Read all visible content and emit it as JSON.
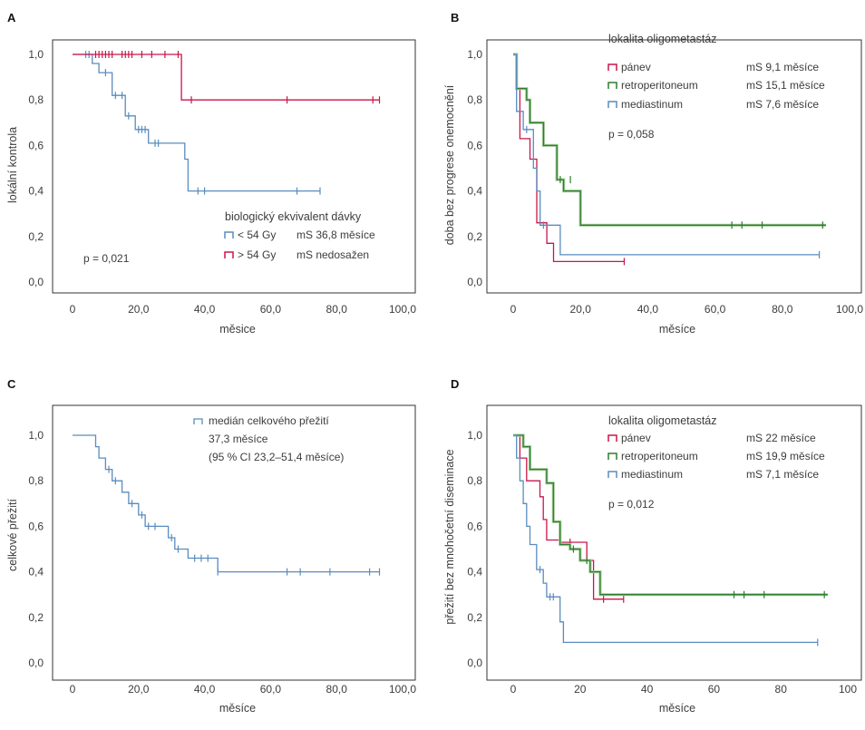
{
  "colors": {
    "red": "#c8164a",
    "blue": "#5a8cbe",
    "green": "#2e7d2e",
    "green_band": "#a9cf9f",
    "axis": "#333333"
  },
  "chart_data": [
    {
      "type": "line",
      "panel_label": "A",
      "xlabel": "měsice",
      "ylabel": "lokální kontrola",
      "xlim": [
        -7,
        100
      ],
      "ylim": [
        0,
        1.0
      ],
      "xticks": [
        "0",
        "20,0",
        "40,0",
        "60,0",
        "80,0",
        "100,0"
      ],
      "xtick_values": [
        0,
        20,
        40,
        60,
        80,
        100
      ],
      "yticks": [
        "0,0",
        "0,2",
        "0,4",
        "0,6",
        "0,8",
        "1,0"
      ],
      "ytick_values": [
        0,
        0.2,
        0.4,
        0.6,
        0.8,
        1.0
      ],
      "legend_title": "biologický ekvivalent dávky",
      "pvalue": "p = 0,021",
      "series": [
        {
          "name": "< 54 Gy",
          "median": "mS 36,8 měsíce",
          "color": "blue",
          "steps": [
            [
              0,
              1.0
            ],
            [
              6,
              1.0
            ],
            [
              6,
              0.96
            ],
            [
              8,
              0.96
            ],
            [
              8,
              0.92
            ],
            [
              12,
              0.92
            ],
            [
              12,
              0.82
            ],
            [
              16,
              0.82
            ],
            [
              16,
              0.73
            ],
            [
              19,
              0.73
            ],
            [
              19,
              0.67
            ],
            [
              23,
              0.67
            ],
            [
              23,
              0.61
            ],
            [
              34,
              0.61
            ],
            [
              34,
              0.54
            ],
            [
              35,
              0.54
            ],
            [
              35,
              0.4
            ],
            [
              75,
              0.4
            ]
          ],
          "censor": [
            [
              4,
              1.0
            ],
            [
              5,
              1.0
            ],
            [
              10,
              0.92
            ],
            [
              13,
              0.82
            ],
            [
              15,
              0.82
            ],
            [
              17,
              0.73
            ],
            [
              20,
              0.67
            ],
            [
              21,
              0.67
            ],
            [
              22,
              0.67
            ],
            [
              25,
              0.61
            ],
            [
              26,
              0.61
            ],
            [
              38,
              0.4
            ],
            [
              40,
              0.4
            ],
            [
              68,
              0.4
            ],
            [
              75,
              0.4
            ]
          ]
        },
        {
          "name": "> 54 Gy",
          "median": "mS nedosažen",
          "color": "red",
          "steps": [
            [
              0,
              1.0
            ],
            [
              33,
              1.0
            ],
            [
              33,
              0.8
            ],
            [
              93,
              0.8
            ]
          ],
          "censor": [
            [
              7,
              1.0
            ],
            [
              8,
              1.0
            ],
            [
              9,
              1.0
            ],
            [
              10,
              1.0
            ],
            [
              11,
              1.0
            ],
            [
              12,
              1.0
            ],
            [
              15,
              1.0
            ],
            [
              16,
              1.0
            ],
            [
              17,
              1.0
            ],
            [
              18,
              1.0
            ],
            [
              21,
              1.0
            ],
            [
              24,
              1.0
            ],
            [
              28,
              1.0
            ],
            [
              32,
              1.0
            ],
            [
              36,
              0.8
            ],
            [
              65,
              0.8
            ],
            [
              91,
              0.8
            ],
            [
              93,
              0.8
            ]
          ]
        }
      ]
    },
    {
      "type": "line",
      "panel_label": "B",
      "xlabel": "měsíce",
      "ylabel": "doba bez progrese onemocnění",
      "xlim": [
        -3,
        100
      ],
      "ylim": [
        0,
        1.0
      ],
      "xticks": [
        "0",
        "20,0",
        "40,0",
        "60,0",
        "80,0",
        "100,0"
      ],
      "xtick_values": [
        0,
        20,
        40,
        60,
        80,
        100
      ],
      "yticks": [
        "0,0",
        "0,2",
        "0,4",
        "0,6",
        "0,8",
        "1,0"
      ],
      "ytick_values": [
        0,
        0.2,
        0.4,
        0.6,
        0.8,
        1.0
      ],
      "legend_title": "lokalita oligometastáz",
      "pvalue": "p = 0,058",
      "series": [
        {
          "name": "pánev",
          "median": "mS 9,1 měsíce",
          "color": "red",
          "steps": [
            [
              0,
              1.0
            ],
            [
              1,
              1.0
            ],
            [
              1,
              0.85
            ],
            [
              2,
              0.85
            ],
            [
              2,
              0.63
            ],
            [
              5,
              0.63
            ],
            [
              5,
              0.54
            ],
            [
              7,
              0.54
            ],
            [
              7,
              0.26
            ],
            [
              10,
              0.26
            ],
            [
              10,
              0.17
            ],
            [
              12,
              0.17
            ],
            [
              12,
              0.09
            ],
            [
              33,
              0.09
            ]
          ],
          "censor": [
            [
              33,
              0.09
            ]
          ]
        },
        {
          "name": "retroperitoneum",
          "median": "mS 15,1 měsíce",
          "color": "green",
          "steps": [
            [
              0,
              1.0
            ],
            [
              1,
              1.0
            ],
            [
              1,
              0.85
            ],
            [
              4,
              0.85
            ],
            [
              4,
              0.8
            ],
            [
              5,
              0.8
            ],
            [
              5,
              0.7
            ],
            [
              9,
              0.7
            ],
            [
              9,
              0.6
            ],
            [
              13,
              0.6
            ],
            [
              13,
              0.45
            ],
            [
              15,
              0.45
            ],
            [
              15,
              0.4
            ],
            [
              20,
              0.4
            ],
            [
              20,
              0.25
            ],
            [
              93,
              0.25
            ]
          ],
          "censor": [
            [
              14,
              0.45
            ],
            [
              17,
              0.45
            ],
            [
              65,
              0.25
            ],
            [
              68,
              0.25
            ],
            [
              74,
              0.25
            ],
            [
              92,
              0.25
            ]
          ]
        },
        {
          "name": "mediastinum",
          "median": "mS 7,6 měsíce",
          "color": "blue",
          "steps": [
            [
              0,
              1.0
            ],
            [
              1,
              1.0
            ],
            [
              1,
              0.75
            ],
            [
              3,
              0.75
            ],
            [
              3,
              0.67
            ],
            [
              6,
              0.67
            ],
            [
              6,
              0.5
            ],
            [
              7,
              0.5
            ],
            [
              7,
              0.4
            ],
            [
              8,
              0.4
            ],
            [
              8,
              0.25
            ],
            [
              14,
              0.25
            ],
            [
              14,
              0.12
            ],
            [
              91,
              0.12
            ]
          ],
          "censor": [
            [
              4,
              0.67
            ],
            [
              9,
              0.25
            ],
            [
              91,
              0.12
            ]
          ]
        }
      ]
    },
    {
      "type": "line",
      "panel_label": "C",
      "xlabel": "měsíce",
      "ylabel": "celkové přežití",
      "xlim": [
        -7,
        100
      ],
      "ylim": [
        0,
        1.0
      ],
      "xticks": [
        "0",
        "20,0",
        "40,0",
        "60,0",
        "80,0",
        "100,0"
      ],
      "xtick_values": [
        0,
        20,
        40,
        60,
        80,
        100
      ],
      "yticks": [
        "0,0",
        "0,2",
        "0,4",
        "0,6",
        "0,8",
        "1,0"
      ],
      "ytick_values": [
        0,
        0.2,
        0.4,
        0.6,
        0.8,
        1.0
      ],
      "legend_lines": [
        "medián celkového přežití",
        "37,3 měsíce",
        "(95 % CI 23,2–51,4 měsíce)"
      ],
      "series": [
        {
          "name": "medián celkového přežití",
          "color": "blue",
          "steps": [
            [
              0,
              1.0
            ],
            [
              7,
              1.0
            ],
            [
              7,
              0.95
            ],
            [
              8,
              0.95
            ],
            [
              8,
              0.9
            ],
            [
              10,
              0.9
            ],
            [
              10,
              0.85
            ],
            [
              12,
              0.85
            ],
            [
              12,
              0.8
            ],
            [
              15,
              0.8
            ],
            [
              15,
              0.75
            ],
            [
              17,
              0.75
            ],
            [
              17,
              0.7
            ],
            [
              20,
              0.7
            ],
            [
              20,
              0.65
            ],
            [
              22,
              0.65
            ],
            [
              22,
              0.6
            ],
            [
              29,
              0.6
            ],
            [
              29,
              0.55
            ],
            [
              31,
              0.55
            ],
            [
              31,
              0.5
            ],
            [
              35,
              0.5
            ],
            [
              35,
              0.46
            ],
            [
              44,
              0.46
            ],
            [
              44,
              0.4
            ],
            [
              93,
              0.4
            ]
          ],
          "censor": [
            [
              11,
              0.85
            ],
            [
              13,
              0.8
            ],
            [
              18,
              0.7
            ],
            [
              21,
              0.65
            ],
            [
              23,
              0.6
            ],
            [
              25,
              0.6
            ],
            [
              30,
              0.55
            ],
            [
              32,
              0.5
            ],
            [
              37,
              0.46
            ],
            [
              39,
              0.46
            ],
            [
              41,
              0.46
            ],
            [
              44,
              0.4
            ],
            [
              65,
              0.4
            ],
            [
              69,
              0.4
            ],
            [
              78,
              0.4
            ],
            [
              90,
              0.4
            ],
            [
              93,
              0.4
            ]
          ]
        }
      ]
    },
    {
      "type": "line",
      "panel_label": "D",
      "xlabel": "měsíce",
      "ylabel": "přežití bez mnohočetní diseminace",
      "xlim": [
        -5,
        100
      ],
      "ylim": [
        0,
        1.0
      ],
      "xticks": [
        "0",
        "20",
        "40",
        "60",
        "80",
        "100"
      ],
      "xtick_values": [
        0,
        20,
        40,
        60,
        80,
        100
      ],
      "yticks": [
        "0,0",
        "0,2",
        "0,4",
        "0,6",
        "0,8",
        "1,0"
      ],
      "ytick_values": [
        0,
        0.2,
        0.4,
        0.6,
        0.8,
        1.0
      ],
      "legend_title": "lokalita oligometastáz",
      "pvalue": "p = 0,012",
      "series": [
        {
          "name": "pánev",
          "median": "mS 22 měsíce",
          "color": "red",
          "steps": [
            [
              0,
              1.0
            ],
            [
              2,
              1.0
            ],
            [
              2,
              0.9
            ],
            [
              4,
              0.9
            ],
            [
              4,
              0.8
            ],
            [
              8,
              0.8
            ],
            [
              8,
              0.73
            ],
            [
              9,
              0.73
            ],
            [
              9,
              0.63
            ],
            [
              10,
              0.63
            ],
            [
              10,
              0.54
            ],
            [
              14,
              0.54
            ],
            [
              14,
              0.53
            ],
            [
              22,
              0.53
            ],
            [
              22,
              0.45
            ],
            [
              24,
              0.45
            ],
            [
              24,
              0.28
            ],
            [
              33,
              0.28
            ]
          ],
          "censor": [
            [
              17,
              0.53
            ],
            [
              27,
              0.28
            ],
            [
              33,
              0.28
            ]
          ]
        },
        {
          "name": "retroperitoneum",
          "median": "mS 19,9 měsíce",
          "color": "green",
          "steps": [
            [
              0,
              1.0
            ],
            [
              3,
              1.0
            ],
            [
              3,
              0.95
            ],
            [
              5,
              0.95
            ],
            [
              5,
              0.85
            ],
            [
              10,
              0.85
            ],
            [
              10,
              0.79
            ],
            [
              12,
              0.79
            ],
            [
              12,
              0.62
            ],
            [
              14,
              0.62
            ],
            [
              14,
              0.52
            ],
            [
              17,
              0.52
            ],
            [
              17,
              0.5
            ],
            [
              20,
              0.5
            ],
            [
              20,
              0.45
            ],
            [
              23,
              0.45
            ],
            [
              23,
              0.4
            ],
            [
              26,
              0.4
            ],
            [
              26,
              0.3
            ],
            [
              94,
              0.3
            ]
          ],
          "censor": [
            [
              18,
              0.5
            ],
            [
              22,
              0.45
            ],
            [
              66,
              0.3
            ],
            [
              69,
              0.3
            ],
            [
              75,
              0.3
            ],
            [
              93,
              0.3
            ]
          ]
        },
        {
          "name": "mediastinum",
          "median": "mS 7,1 měsíce",
          "color": "blue",
          "steps": [
            [
              0,
              1.0
            ],
            [
              1,
              1.0
            ],
            [
              1,
              0.9
            ],
            [
              2,
              0.9
            ],
            [
              2,
              0.8
            ],
            [
              3,
              0.8
            ],
            [
              3,
              0.7
            ],
            [
              4,
              0.7
            ],
            [
              4,
              0.6
            ],
            [
              5,
              0.6
            ],
            [
              5,
              0.52
            ],
            [
              7,
              0.52
            ],
            [
              7,
              0.41
            ],
            [
              9,
              0.41
            ],
            [
              9,
              0.35
            ],
            [
              10,
              0.35
            ],
            [
              10,
              0.29
            ],
            [
              14,
              0.29
            ],
            [
              14,
              0.18
            ],
            [
              15,
              0.18
            ],
            [
              15,
              0.09
            ],
            [
              91,
              0.09
            ]
          ],
          "censor": [
            [
              8,
              0.41
            ],
            [
              11,
              0.29
            ],
            [
              12,
              0.29
            ],
            [
              91,
              0.09
            ]
          ]
        }
      ]
    }
  ]
}
